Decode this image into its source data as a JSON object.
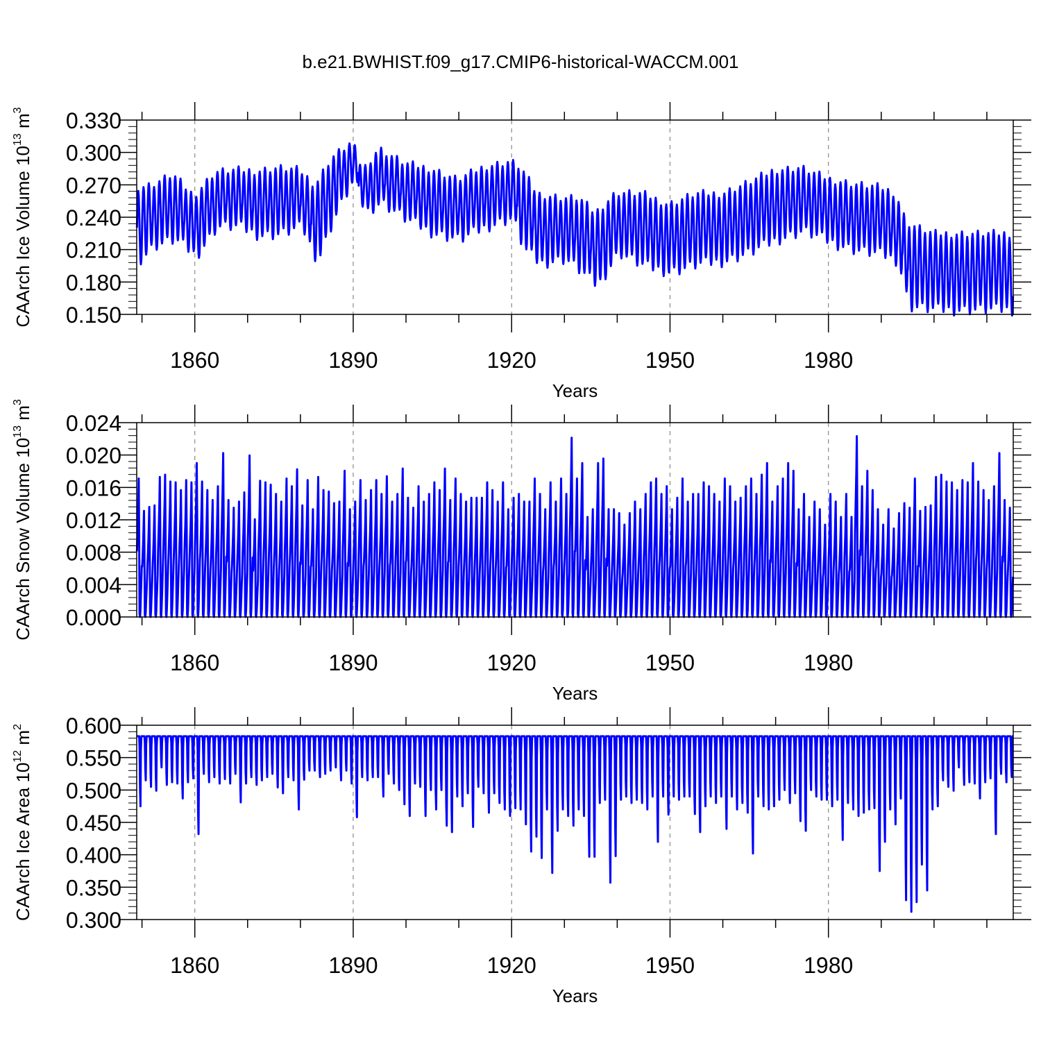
{
  "title": "b.e21.BWHIST.f09_g17.CMIP6-historical-WACCM.001",
  "colors": {
    "line": "#0000ff",
    "axis": "#000000",
    "grid": "#888888"
  },
  "chart_data": [
    {
      "type": "line",
      "ylabel": {
        "text": "CAArch Ice Volume 10",
        "exp": "13",
        "unit": " m",
        "unit_exp": "3"
      },
      "xlabel": "Years",
      "xlim": [
        1849,
        2015
      ],
      "ylim": [
        0.15,
        0.33
      ],
      "yticks": [
        "0.150",
        "0.180",
        "0.210",
        "0.240",
        "0.270",
        "0.300",
        "0.330"
      ],
      "xticks": [
        "1860",
        "1890",
        "1920",
        "1950",
        "1980"
      ],
      "xtick_values": [
        1860,
        1890,
        1920,
        1950,
        1980
      ],
      "series": [
        {
          "seasonal": true,
          "years": [
            1849,
            1852,
            1856,
            1860,
            1864,
            1868,
            1872,
            1876,
            1880,
            1883,
            1886,
            1889,
            1890,
            1892,
            1895,
            1900,
            1905,
            1910,
            1915,
            1920,
            1922,
            1925,
            1930,
            1933,
            1936,
            1940,
            1945,
            1950,
            1955,
            1960,
            1965,
            1970,
            1975,
            1980,
            1985,
            1990,
            1993,
            1995,
            2000
          ],
          "max": [
            0.268,
            0.27,
            0.28,
            0.26,
            0.282,
            0.284,
            0.283,
            0.286,
            0.284,
            0.27,
            0.295,
            0.306,
            0.31,
            0.284,
            0.304,
            0.29,
            0.285,
            0.275,
            0.287,
            0.292,
            0.286,
            0.262,
            0.258,
            0.258,
            0.244,
            0.263,
            0.262,
            0.252,
            0.262,
            0.262,
            0.272,
            0.284,
            0.286,
            0.276,
            0.271,
            0.268,
            0.262,
            0.235,
            0.225
          ],
          "min": [
            0.2,
            0.214,
            0.22,
            0.205,
            0.232,
            0.232,
            0.224,
            0.225,
            0.232,
            0.2,
            0.238,
            0.268,
            0.275,
            0.245,
            0.255,
            0.238,
            0.226,
            0.22,
            0.232,
            0.24,
            0.212,
            0.198,
            0.202,
            0.19,
            0.177,
            0.208,
            0.195,
            0.19,
            0.197,
            0.2,
            0.208,
            0.22,
            0.228,
            0.218,
            0.21,
            0.206,
            0.2,
            0.158,
            0.155
          ]
        }
      ]
    },
    {
      "type": "line",
      "ylabel": {
        "text": "CAArch Snow Volume 10",
        "exp": "13",
        "unit": " m",
        "unit_exp": "3"
      },
      "xlabel": "Years",
      "xlim": [
        1849,
        2015
      ],
      "ylim": [
        0.0,
        0.024
      ],
      "yticks": [
        "0.000",
        "0.004",
        "0.008",
        "0.012",
        "0.016",
        "0.020",
        "0.024"
      ],
      "xticks": [
        "1860",
        "1890",
        "1920",
        "1950",
        "1980"
      ],
      "xtick_values": [
        1860,
        1890,
        1920,
        1950,
        1980
      ],
      "series": [
        {
          "seasonal": true,
          "peaks": [
            0.018,
            0.0138,
            0.0143,
            0.0145,
            0.0182,
            0.0185,
            0.0176,
            0.0175,
            0.0165,
            0.0178,
            0.0175,
            0.02,
            0.0176,
            0.0165,
            0.0152,
            0.017,
            0.0213,
            0.0152,
            0.0142,
            0.015,
            0.0162,
            0.021,
            0.0127,
            0.0177,
            0.0175,
            0.0172,
            0.016,
            0.015,
            0.018,
            0.017,
            0.0192,
            0.0145,
            0.0178,
            0.014,
            0.0182,
            0.0165,
            0.0163,
            0.0148,
            0.015,
            0.019,
            0.014,
            0.015,
            0.0178,
            0.0152,
            0.0165,
            0.0178,
            0.016,
            0.0183,
            0.015,
            0.016,
            0.0193,
            0.0155,
            0.0142,
            0.017,
            0.015,
            0.016,
            0.0175,
            0.0165,
            0.0193,
            0.0152,
            0.018,
            0.016,
            0.015,
            0.0155,
            0.0155,
            0.0155,
            0.0175,
            0.0165,
            0.015,
            0.0175,
            0.014,
            0.0155,
            0.016,
            0.015,
            0.015,
            0.018,
            0.016,
            0.014,
            0.0175,
            0.015,
            0.018,
            0.016,
            0.0233,
            0.018,
            0.02,
            0.013,
            0.014,
            0.02,
            0.0206,
            0.014,
            0.014,
            0.0135,
            0.012,
            0.0135,
            0.015,
            0.014,
            0.016,
            0.0175,
            0.018,
            0.016,
            0.017,
            0.014,
            0.0155,
            0.018,
            0.015,
            0.016,
            0.016,
            0.0175,
            0.017,
            0.016,
            0.015,
            0.018,
            0.017,
            0.015,
            0.0155,
            0.017,
            0.018,
            0.016,
            0.0185,
            0.02,
            0.015,
            0.017,
            0.018,
            0.02,
            0.019,
            0.014,
            0.016,
            0.013,
            0.015,
            0.014,
            0.012,
            0.016,
            0.015,
            0.013,
            0.016,
            0.013,
            0.0235,
            0.017,
            0.019,
            0.0165,
            0.014,
            0.012,
            0.014,
            0.0115,
            0.0135,
            0.0148,
            0.0142
          ]
        }
      ]
    },
    {
      "type": "line",
      "ylabel": {
        "text": "CAArch Ice Area 10",
        "exp": "12",
        "unit": " m",
        "unit_exp": "2"
      },
      "xlabel": "Years",
      "xlim": [
        1849,
        2015
      ],
      "ylim": [
        0.3,
        0.6
      ],
      "yticks": [
        "0.300",
        "0.350",
        "0.400",
        "0.450",
        "0.500",
        "0.550",
        "0.600"
      ],
      "xticks": [
        "1860",
        "1890",
        "1920",
        "1950",
        "1980"
      ],
      "xtick_values": [
        1860,
        1890,
        1920,
        1950,
        1980
      ],
      "series": [
        {
          "seasonal": true,
          "max": 0.583,
          "minima": [
            0.475,
            0.515,
            0.505,
            0.499,
            0.535,
            0.508,
            0.512,
            0.51,
            0.487,
            0.512,
            0.518,
            0.432,
            0.525,
            0.512,
            0.52,
            0.51,
            0.517,
            0.51,
            0.525,
            0.481,
            0.51,
            0.52,
            0.508,
            0.515,
            0.52,
            0.525,
            0.504,
            0.495,
            0.52,
            0.515,
            0.47,
            0.516,
            0.53,
            0.53,
            0.52,
            0.525,
            0.53,
            0.535,
            0.515,
            0.53,
            0.51,
            0.458,
            0.52,
            0.515,
            0.52,
            0.52,
            0.49,
            0.525,
            0.51,
            0.5,
            0.478,
            0.46,
            0.51,
            0.505,
            0.46,
            0.5,
            0.47,
            0.5,
            0.445,
            0.435,
            0.49,
            0.475,
            0.495,
            0.443,
            0.505,
            0.495,
            0.465,
            0.495,
            0.48,
            0.47,
            0.46,
            0.472,
            0.47,
            0.447,
            0.405,
            0.428,
            0.395,
            0.47,
            0.372,
            0.437,
            0.47,
            0.46,
            0.445,
            0.47,
            0.46,
            0.397,
            0.397,
            0.48,
            0.485,
            0.357,
            0.398,
            0.485,
            0.49,
            0.48,
            0.485,
            0.48,
            0.47,
            0.49,
            0.42,
            0.49,
            0.462,
            0.49,
            0.485,
            0.49,
            0.49,
            0.463,
            0.435,
            0.475,
            0.49,
            0.48,
            0.49,
            0.44,
            0.49,
            0.47,
            0.48,
            0.465,
            0.402,
            0.49,
            0.475,
            0.47,
            0.475,
            0.485,
            0.5,
            0.48,
            0.495,
            0.452,
            0.437,
            0.5,
            0.49,
            0.485,
            0.485,
            0.475,
            0.485,
            0.423,
            0.48,
            0.47,
            0.46,
            0.465,
            0.47,
            0.472,
            0.375,
            0.42,
            0.47,
            0.447,
            0.487,
            0.33,
            0.312,
            0.327,
            0.385,
            0.345,
            0.47
          ]
        }
      ]
    }
  ]
}
